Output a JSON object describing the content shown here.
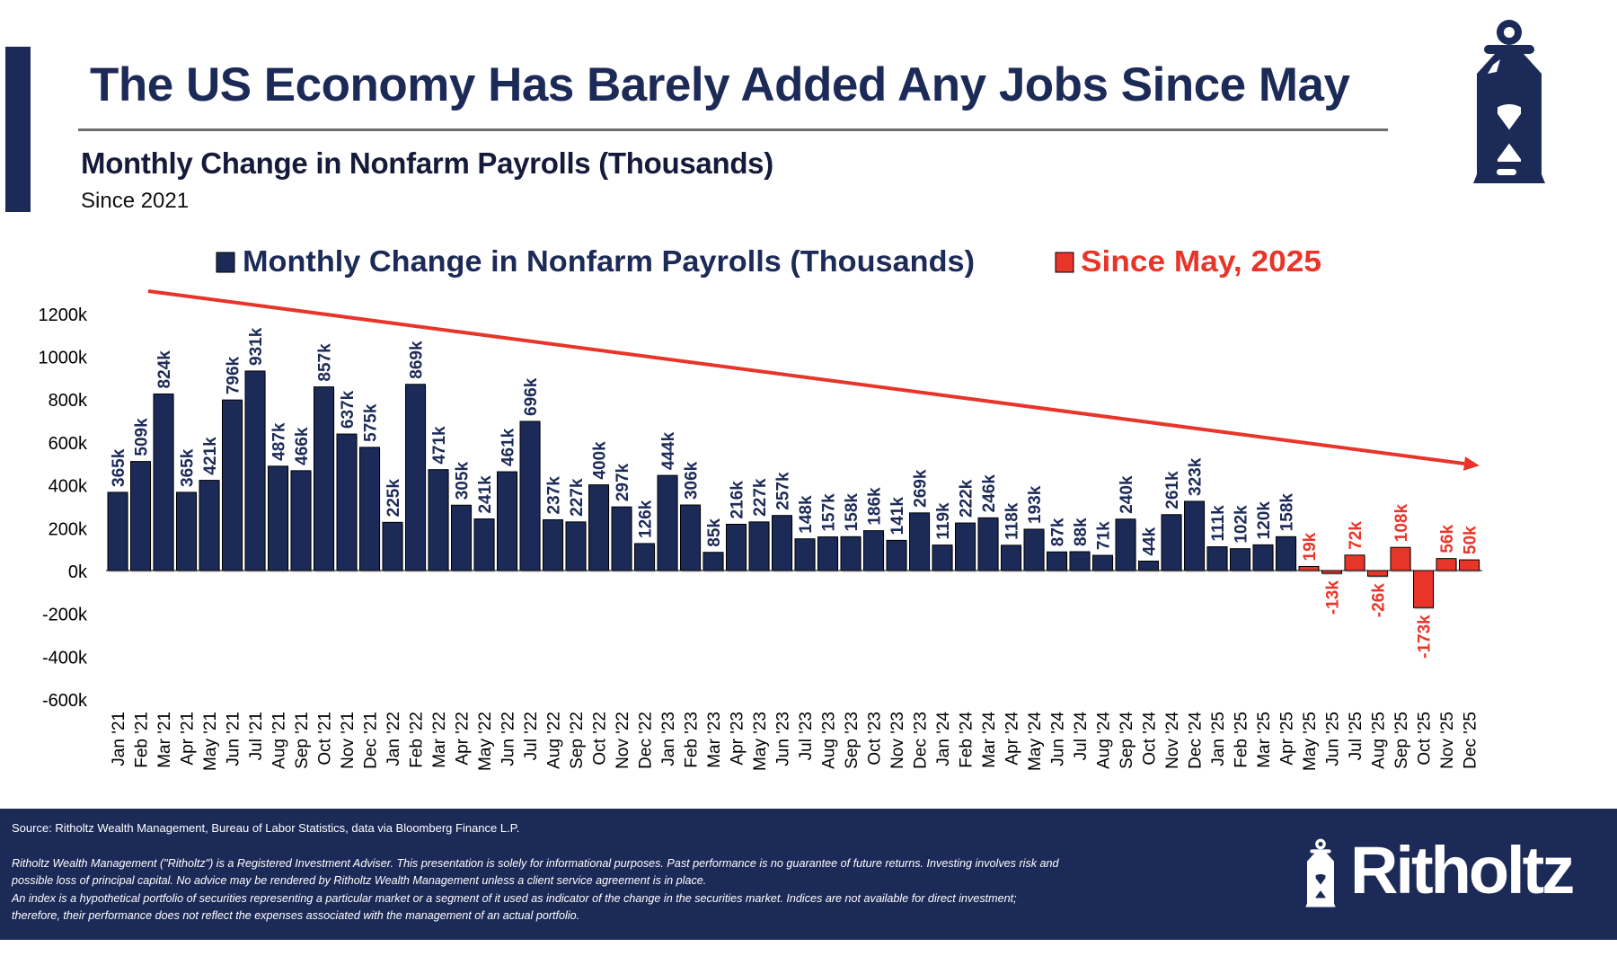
{
  "header": {
    "title": "The US Economy Has Barely Added Any Jobs Since May",
    "subtitle": "Monthly Change in Nonfarm Payrolls (Thousands)",
    "period": "Since 2021"
  },
  "colors": {
    "navy": "#1c2a57",
    "red": "#e8352a",
    "rule": "#6e6e6e"
  },
  "icons": {
    "brand": "lantern-icon"
  },
  "chart_data": {
    "type": "bar",
    "title": "Monthly Change in Nonfarm Payrolls (Thousands)",
    "xlabel": "",
    "ylabel": "",
    "ylim": [
      -600,
      1200
    ],
    "yticks": [
      1200,
      1000,
      800,
      600,
      400,
      200,
      0,
      -200,
      -400,
      -600
    ],
    "ytick_labels": [
      "1200k",
      "1000k",
      "800k",
      "600k",
      "400k",
      "200k",
      "0k",
      "-200k",
      "-400k",
      "-600k"
    ],
    "grid": false,
    "legend_position": "top",
    "legend": [
      {
        "name": "Monthly Change in Nonfarm Payrolls (Thousands)",
        "color": "#1c2a57"
      },
      {
        "name": "Since May, 2025",
        "color": "#e8352a"
      }
    ],
    "categories": [
      "Jan '21",
      "Feb '21",
      "Mar '21",
      "Apr '21",
      "May '21",
      "Jun '21",
      "Jul '21",
      "Aug '21",
      "Sep '21",
      "Oct '21",
      "Nov '21",
      "Dec '21",
      "Jan '22",
      "Feb '22",
      "Mar '22",
      "Apr '22",
      "May '22",
      "Jun '22",
      "Jul '22",
      "Aug '22",
      "Sep '22",
      "Oct '22",
      "Nov '22",
      "Dec '22",
      "Jan '23",
      "Feb '23",
      "Mar '23",
      "Apr '23",
      "May '23",
      "Jun '23",
      "Jul '23",
      "Aug '23",
      "Sep '23",
      "Oct '23",
      "Nov '23",
      "Dec '23",
      "Jan '24",
      "Feb '24",
      "Mar '24",
      "Apr '24",
      "May '24",
      "Jun '24",
      "Jul '24",
      "Aug '24",
      "Sep '24",
      "Oct '24",
      "Nov '24",
      "Dec '24",
      "Jan '25",
      "Feb '25",
      "Mar '25",
      "Apr '25",
      "May '25",
      "Jun '25",
      "Jul '25",
      "Aug '25",
      "Sep '25",
      "Oct '25",
      "Nov '25",
      "Dec '25"
    ],
    "series": [
      {
        "name": "Monthly Change in Nonfarm Payrolls (Thousands)",
        "color": "#1c2a57",
        "values": [
          365,
          509,
          824,
          365,
          421,
          796,
          931,
          487,
          466,
          857,
          637,
          575,
          225,
          869,
          471,
          305,
          241,
          461,
          696,
          237,
          227,
          400,
          297,
          126,
          444,
          306,
          85,
          216,
          227,
          257,
          148,
          157,
          158,
          186,
          141,
          269,
          119,
          222,
          246,
          118,
          193,
          87,
          88,
          71,
          240,
          44,
          261,
          323,
          111,
          102,
          120,
          158,
          null,
          null,
          null,
          null,
          null,
          null,
          null,
          null
        ]
      },
      {
        "name": "Since May, 2025",
        "color": "#e8352a",
        "values": [
          null,
          null,
          null,
          null,
          null,
          null,
          null,
          null,
          null,
          null,
          null,
          null,
          null,
          null,
          null,
          null,
          null,
          null,
          null,
          null,
          null,
          null,
          null,
          null,
          null,
          null,
          null,
          null,
          null,
          null,
          null,
          null,
          null,
          null,
          null,
          null,
          null,
          null,
          null,
          null,
          null,
          null,
          null,
          null,
          null,
          null,
          null,
          null,
          null,
          null,
          null,
          null,
          19,
          -13,
          72,
          -26,
          108,
          -173,
          56,
          50
        ]
      }
    ],
    "data_labels": [
      "365k",
      "509k",
      "824k",
      "365k",
      "421k",
      "796k",
      "931k",
      "487k",
      "466k",
      "857k",
      "637k",
      "575k",
      "225k",
      "869k",
      "471k",
      "305k",
      "241k",
      "461k",
      "696k",
      "237k",
      "227k",
      "400k",
      "297k",
      "126k",
      "444k",
      "306k",
      "85k",
      "216k",
      "227k",
      "257k",
      "148k",
      "157k",
      "158k",
      "186k",
      "141k",
      "269k",
      "119k",
      "222k",
      "246k",
      "118k",
      "193k",
      "87k",
      "88k",
      "71k",
      "240k",
      "44k",
      "261k",
      "323k",
      "111k",
      "102k",
      "120k",
      "158k",
      "19k",
      "-13k",
      "72k",
      "-26k",
      "108k",
      "-173k",
      "56k",
      "50k"
    ],
    "annotations": [
      {
        "type": "trend-arrow",
        "from_category": "Jan '21",
        "to_category": "Dec '25",
        "color": "#e8352a"
      }
    ]
  },
  "footer": {
    "source": "Source: Ritholtz Wealth Management, Bureau of Labor Statistics, data via Bloomberg Finance L.P.",
    "disclaimer": [
      "Ritholtz Wealth Management (\"Ritholtz\") is a Registered Investment Adviser. This presentation is solely for informational purposes. Past performance is no guarantee of future returns. Investing involves risk and",
      "possible loss of principal capital. No advice may be rendered by Ritholtz Wealth Management unless a client service agreement is in place.",
      "An index is a hypothetical portfolio of securities representing a particular market or a segment of it used as indicator of the change in the securities market. Indices are not available for direct investment;",
      "therefore, their performance does not reflect the expenses associated with the management of an actual portfolio."
    ],
    "logo_text": "Ritholtz"
  }
}
